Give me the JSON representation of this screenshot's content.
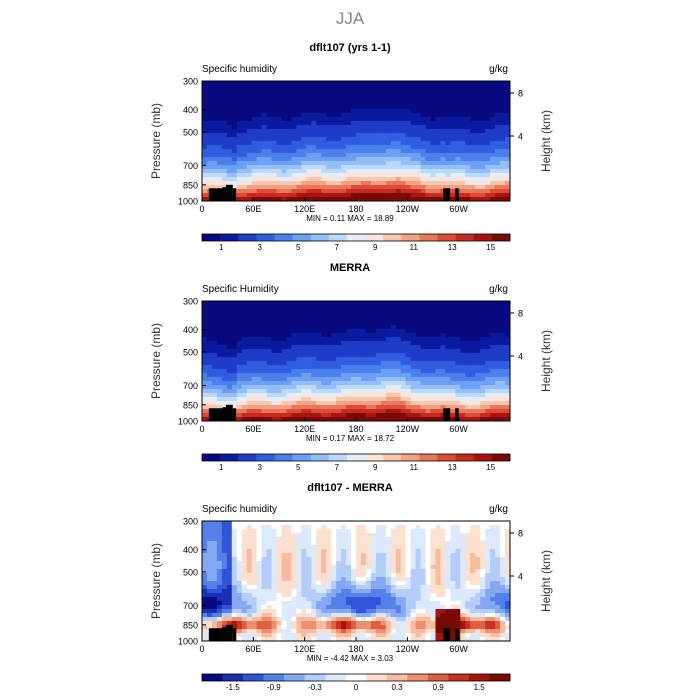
{
  "figure": {
    "season": "JJA"
  },
  "colors": {
    "humidity_scale": [
      "#0a0a80",
      "#0b1a9e",
      "#1e3cc8",
      "#2f5fe0",
      "#4b80ec",
      "#6ba0f2",
      "#94bff6",
      "#bcd8fa",
      "#e4eefb",
      "#fbe5d8",
      "#f8c7b0",
      "#f2a184",
      "#e9775a",
      "#dc4d38",
      "#c72a1f",
      "#a8140f",
      "#7a0a08"
    ],
    "diff_scale": [
      "#0a0a80",
      "#1a2fb5",
      "#3055d8",
      "#5580ea",
      "#84a8f2",
      "#b4ccf8",
      "#dce8fb",
      "#ffffff",
      "#fbe0d0",
      "#f6bba0",
      "#ee8e6d",
      "#e05e42",
      "#c83222",
      "#a31410",
      "#7a0a08"
    ],
    "topography": "#000000"
  },
  "chart_data": [
    {
      "type": "heatmap",
      "title": "dflt107 (yrs 1-1)",
      "variable_label": "Specific humidity",
      "units": "g/kg",
      "ylabel": "Pressure (mb)",
      "ylabel_right": "Height (km)",
      "xticks": [
        "0",
        "60E",
        "120E",
        "180",
        "120W",
        "60W"
      ],
      "yticks": [
        "300",
        "400",
        "500",
        "700",
        "850",
        "1000"
      ],
      "yticks_right": [
        "8",
        "4"
      ],
      "stats": "MIN =    0.11   MAX =   18.89",
      "colorbar_labels": [
        "1",
        "3",
        "5",
        "7",
        "9",
        "11",
        "13",
        "15"
      ]
    },
    {
      "type": "heatmap",
      "title": "MERRA",
      "variable_label": "Specific Humidity",
      "units": "g/kg",
      "ylabel": "Pressure (mb)",
      "ylabel_right": "Height (km)",
      "xticks": [
        "0",
        "60E",
        "120E",
        "180",
        "120W",
        "60W"
      ],
      "yticks": [
        "300",
        "400",
        "500",
        "700",
        "850",
        "1000"
      ],
      "yticks_right": [
        "8",
        "4"
      ],
      "stats": "MIN =    0.17   MAX =   18.72",
      "colorbar_labels": [
        "1",
        "3",
        "5",
        "7",
        "9",
        "11",
        "13",
        "15"
      ]
    },
    {
      "type": "heatmap",
      "title": "dflt107 - MERRA",
      "variable_label": "Specific humidity",
      "units": "g/kg",
      "ylabel": "Pressure (mb)",
      "ylabel_right": "Height (km)",
      "xticks": [
        "0",
        "60E",
        "120E",
        "180",
        "120W",
        "60W"
      ],
      "yticks": [
        "300",
        "400",
        "500",
        "700",
        "850",
        "1000"
      ],
      "yticks_right": [
        "8",
        "4"
      ],
      "stats": "MIN =   -4.42   MAX =    3.03",
      "colorbar_labels": [
        "-1.5",
        "-0.9",
        "-0.3",
        "0",
        "0.3",
        "0.9",
        "1.5"
      ]
    }
  ]
}
